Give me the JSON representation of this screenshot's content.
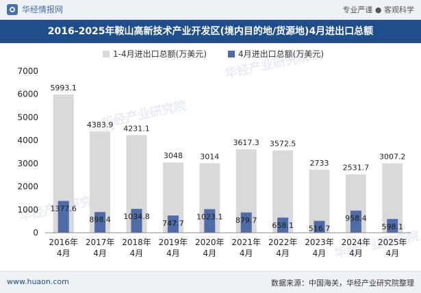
{
  "header": {
    "brand": "华经情报网",
    "tagline": "专业严谨 ● 客观科学"
  },
  "footer": {
    "url": "www.huaon.com",
    "source": "数据来源：中国海关，华经产业研究院整理"
  },
  "watermark": "华经产业研究院",
  "colors": {
    "series1": "#d9d9d9",
    "series2": "#4f6ca8",
    "title_bg": "#1f4f8b"
  },
  "chart_data": {
    "type": "bar",
    "title": "2016-2025年鞍山高新技术产业开发区(境内目的地/货源地)4月进出口总额",
    "categories": [
      [
        "2016年",
        "4月"
      ],
      [
        "2017年",
        "4月"
      ],
      [
        "2018年",
        "4月"
      ],
      [
        "2019年",
        "4月"
      ],
      [
        "2020年",
        "4月"
      ],
      [
        "2021年",
        "4月"
      ],
      [
        "2022年",
        "4月"
      ],
      [
        "2023年",
        "4月"
      ],
      [
        "2024年",
        "4月"
      ],
      [
        "2025年",
        "4月"
      ]
    ],
    "series": [
      {
        "name": "1-4月进出口总额(万美元)",
        "values": [
          5993.1,
          4383.9,
          4231.1,
          3048,
          3014,
          3617.3,
          3572.5,
          2733,
          2531.7,
          3007.2
        ],
        "labels": [
          "5993.1",
          "4383.9",
          "4231.1",
          "3048",
          "3014",
          "3617.3",
          "3572.5",
          "2733",
          "2531.7",
          "3007.2"
        ]
      },
      {
        "name": "4月进出口总额(万美元)",
        "values": [
          1377.6,
          898.4,
          1034.8,
          747.7,
          1023.1,
          879.7,
          658.1,
          516.7,
          958.4,
          598.1
        ],
        "labels": [
          "1377.6",
          "898.4",
          "1034.8",
          "747.7",
          "1023.1",
          "879.7",
          "658.1",
          "516.7",
          "958.4",
          "598.1"
        ]
      }
    ],
    "ylim": [
      0,
      7000
    ],
    "yticks": [
      0,
      1000,
      2000,
      3000,
      4000,
      5000,
      6000,
      7000
    ],
    "legend": "top-center",
    "grid": false
  }
}
